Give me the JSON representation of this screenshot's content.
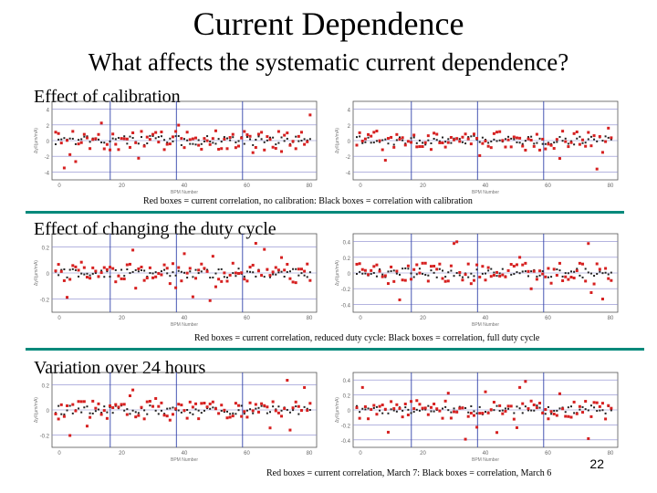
{
  "slide": {
    "title": "Current Dependence",
    "subtitle": "What affects the systematic current dependence?",
    "page_number": "22",
    "divider_color": "#00897b"
  },
  "sections": [
    {
      "label": "Effect of calibration",
      "caption": "Red boxes = current correlation, no calibration:  Black boxes = correlation with calibration",
      "plots": [
        {
          "x_ticks": [
            "0",
            "20",
            "40",
            "60",
            "80"
          ],
          "y_ticks": [
            "4",
            "2",
            "0",
            "-2",
            "-4"
          ],
          "y_label": "Δy/I(μm/mA)",
          "x_label": "BPM Number"
        },
        {
          "x_ticks": [
            "0",
            "20",
            "40",
            "60",
            "80"
          ],
          "y_ticks": [
            "4",
            "2",
            "0",
            "-2",
            "-4"
          ],
          "y_label": "Δy/I(μm/mA)",
          "x_label": "BPM Number"
        }
      ]
    },
    {
      "label": "Effect of changing the duty cycle",
      "caption": "Red boxes = current correlation, reduced duty cycle:  Black boxes = correlation, full duty cycle",
      "plots": [
        {
          "x_ticks": [
            "0",
            "20",
            "40",
            "60",
            "80"
          ],
          "y_ticks": [
            "0.2",
            "0",
            "-0.2"
          ],
          "y_label": "Δy/I(μm/mA)",
          "x_label": "BPM Number"
        },
        {
          "x_ticks": [
            "0",
            "20",
            "40",
            "60",
            "80"
          ],
          "y_ticks": [
            "0.4",
            "0.2",
            "0",
            "-0.2",
            "-0.4"
          ],
          "y_label": "Δy/I(μm/mA)",
          "x_label": "BPM Number"
        }
      ]
    },
    {
      "label": "Variation over 24 hours",
      "caption": "Red boxes = current correlation, March 7:  Black boxes = correlation, March 6",
      "plots": [
        {
          "x_ticks": [
            "0",
            "20",
            "40",
            "60",
            "80"
          ],
          "y_ticks": [
            "0.2",
            "0",
            "-0.2"
          ],
          "y_label": "Δy/I(μm/mA)",
          "x_label": "BPM Number"
        },
        {
          "x_ticks": [
            "0",
            "20",
            "40",
            "60",
            "80"
          ],
          "y_ticks": [
            "0.4",
            "0.2",
            "0",
            "-0.2",
            "-0.4"
          ],
          "y_label": "Δy/I(μm/mA)",
          "x_label": "BPM Number"
        }
      ]
    }
  ]
}
